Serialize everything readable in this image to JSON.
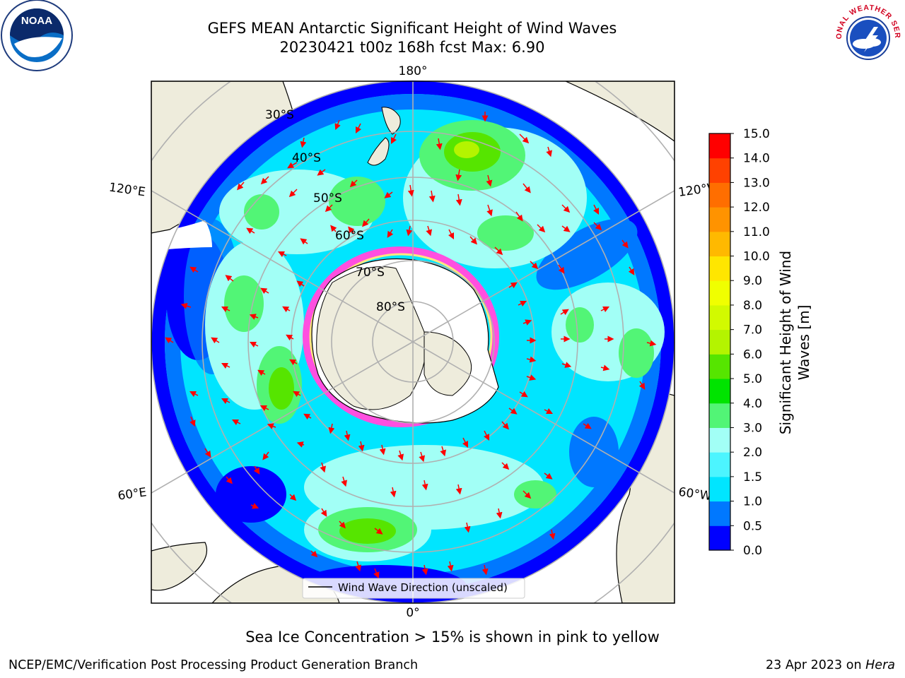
{
  "header": {
    "title": "GEFS MEAN Antarctic Significant Height of Wind Waves",
    "subtitle": "20230421 t00z 168h fcst   Max: 6.90"
  },
  "map": {
    "meridian_labels": {
      "top": "180°",
      "bottom": "0°",
      "upper_left": "120°E",
      "upper_right": "120°W",
      "lower_left": "60°E",
      "lower_right": "60°W"
    },
    "latitude_labels": [
      "30°S",
      "40°S",
      "50°S",
      "60°S",
      "70°S",
      "80°S"
    ],
    "legend": "Wind Wave Direction (unscaled)"
  },
  "colorbar": {
    "label": "Significant Height of Wind Waves [m]",
    "ticks": [
      "0.0",
      "0.5",
      "1.0",
      "1.5",
      "2.0",
      "3.0",
      "4.0",
      "5.0",
      "6.0",
      "7.0",
      "8.0",
      "9.0",
      "10.0",
      "11.0",
      "12.0",
      "13.0",
      "14.0",
      "15.0"
    ],
    "colors": [
      "#0000ff",
      "#0078ff",
      "#00e5ff",
      "#4cf5ff",
      "#a2fff6",
      "#52f576",
      "#00e400",
      "#56e500",
      "#b4f400",
      "#d2fa00",
      "#f0ff00",
      "#ffe600",
      "#ffb900",
      "#ff9300",
      "#ff6e00",
      "#ff4100",
      "#ff0000"
    ]
  },
  "notes": {
    "sea_ice": "Sea Ice Concentration > 15% is shown in pink to yellow"
  },
  "footer": {
    "left": "NCEP/EMC/Verification Post Processing Product Generation Branch",
    "date": "23 Apr 2023 on",
    "host": "Hera"
  },
  "logos": {
    "noaa": "NOAA",
    "nws": "NATIONAL WEATHER SERVICE"
  }
}
